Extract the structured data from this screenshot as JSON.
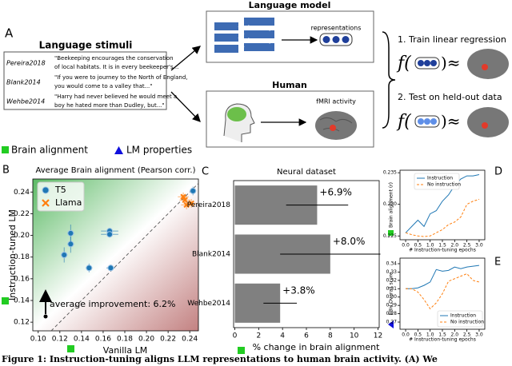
{
  "panel_labels": [
    "A",
    "B",
    "C",
    "D",
    "E"
  ],
  "stimuli": {
    "title": "Language stimuli",
    "rows": [
      {
        "dataset": "Pereira2018",
        "text": [
          "\"Beekeeping encourages the conservation",
          "of local habitats. It is in every beekeeper's..."
        ]
      },
      {
        "dataset": "Blank2014",
        "text": [
          "\"If you were to journey to the North of England,",
          "you would come to a valley that...\""
        ]
      },
      {
        "dataset": "Wehbe2014",
        "text": [
          "\"Harry had never believed he would meet a",
          "boy he hated more than Dudley, but...\""
        ]
      }
    ]
  },
  "language_model": {
    "title": "Language model",
    "output": "representations"
  },
  "human": {
    "title": "Human",
    "output": "fMRI activity"
  },
  "steps": [
    "1. Train linear regression",
    "2. Test on held-out data"
  ],
  "formula": {
    "prefix": "f(",
    "suffix": ")≈"
  },
  "legend_row": [
    "Brain alignment",
    "LM properties"
  ],
  "chart_data": [
    {
      "type": "scatter",
      "title": "Average Brain alignment (Pearson corr.)",
      "xlabel": "Vanilla LM",
      "ylabel": "Instruction-tuned LM",
      "xlim": [
        0.095,
        0.248
      ],
      "ylim": [
        0.112,
        0.252
      ],
      "xticks": [
        {
          "value": 0.1,
          "label": "0.10"
        },
        0.12,
        0.14,
        0.16,
        0.18,
        {
          "value": 0.2,
          "label": "0.20"
        },
        0.22,
        0.24
      ],
      "yticks": [
        0.12,
        0.14,
        0.16,
        0.18,
        {
          "value": 0.2,
          "label": "0.20"
        },
        0.22,
        0.24
      ],
      "legend": "upper left",
      "series": [
        {
          "name": "T5",
          "color": "#1f77b4",
          "marker": "circle",
          "x": [
            0.124,
            0.13,
            0.13,
            0.147,
            0.167,
            0.166,
            0.166,
            0.243
          ],
          "values": [
            0.182,
            0.192,
            0.202,
            0.17,
            0.17,
            0.204,
            0.201,
            0.241
          ],
          "xerr": [
            0.003,
            0.003,
            0.003,
            0.003,
            0.004,
            0.008,
            0.008,
            0.003
          ],
          "yerr": [
            0.007,
            0.008,
            0.008,
            0.004,
            0.003,
            0.003,
            0.003,
            0.004
          ]
        },
        {
          "name": "Llama",
          "color": "#ff7f0e",
          "marker": "x",
          "x": [
            0.234,
            0.2356,
            0.237,
            0.2415
          ],
          "values": [
            0.2356,
            0.2326,
            0.2281,
            0.2296
          ],
          "xerr": [
            0.005,
            0.005,
            0.005,
            0.004
          ],
          "yerr": [
            0.004,
            0.004,
            0.004,
            0.004
          ]
        }
      ],
      "annotation": "average improvement: 6.2%"
    },
    {
      "type": "barh",
      "title": "Neural dataset",
      "xlabel": "% change in brain alignment",
      "categories": [
        "Pereira2018",
        "Blank2014",
        "Wehbe2014"
      ],
      "values": [
        6.9,
        8.0,
        3.8
      ],
      "value_labels": [
        "+6.9%",
        "+8.0%",
        "+3.8%"
      ],
      "errors": [
        2.6,
        4.2,
        1.4
      ],
      "color": "#808080",
      "xlim": [
        -0.1,
        12.1
      ],
      "xticks": [
        0,
        2,
        4,
        6,
        8,
        10,
        12
      ]
    },
    {
      "type": "line",
      "ylabel": "Brain alignment (r)",
      "xlabel": "# Instruction-tuning epochs",
      "x": [
        0,
        0.25,
        0.5,
        0.75,
        1,
        1.25,
        1.5,
        1.75,
        2,
        2.25,
        2.5,
        2.75,
        3
      ],
      "xlim": [
        -0.23,
        3.23
      ],
      "ylim": [
        0.2244,
        0.2354
      ],
      "xticks": [
        {
          "value": 0,
          "label": "0.0"
        },
        0.5,
        {
          "value": 1,
          "label": "1.0"
        },
        1.5,
        {
          "value": 2,
          "label": "2.0"
        },
        2.5,
        {
          "value": 3,
          "label": "3.0"
        }
      ],
      "yticks": [
        0.225,
        {
          "value": 0.23,
          "label": "0.230"
        },
        0.235
      ],
      "legend": "upper left",
      "series": [
        {
          "name": "Instruction",
          "color": "#1f77b4",
          "linestyle": "solid",
          "values": [
            0.2255,
            0.2265,
            0.2275,
            0.2265,
            0.2285,
            0.229,
            0.2305,
            0.2315,
            0.233,
            0.234,
            0.2345,
            0.2345,
            0.2347
          ]
        },
        {
          "name": "No instruction",
          "color": "#ff7f0e",
          "linestyle": "dashed",
          "values": [
            0.2255,
            0.2252,
            0.225,
            0.2249,
            0.225,
            0.2255,
            0.226,
            0.2268,
            0.2272,
            0.228,
            0.23,
            0.2305,
            0.2308
          ]
        }
      ]
    },
    {
      "type": "line",
      "ylabel": "BBH Overall score",
      "xlabel": "# Instruction-tuning epochs",
      "x": [
        0,
        0.25,
        0.5,
        0.75,
        1,
        1.25,
        1.5,
        1.75,
        2,
        2.25,
        2.5,
        2.75,
        3
      ],
      "xlim": [
        -0.23,
        3.23
      ],
      "ylim": [
        0.2614,
        0.3467
      ],
      "xticks": [
        {
          "value": 0,
          "label": "0.0"
        },
        0.5,
        {
          "value": 1,
          "label": "1.0"
        },
        1.5,
        {
          "value": 2,
          "label": "2.0"
        },
        2.5,
        {
          "value": 3,
          "label": "3.0"
        }
      ],
      "yticks": [
        0.27,
        0.28,
        0.29,
        {
          "value": 0.3,
          "label": "0.30"
        },
        0.31,
        0.32,
        0.33,
        0.34
      ],
      "legend": "lower right",
      "series": [
        {
          "name": "Instruction",
          "color": "#1f77b4",
          "linestyle": "solid",
          "values": [
            0.31,
            0.31,
            0.311,
            0.314,
            0.318,
            0.333,
            0.331,
            0.332,
            0.336,
            0.334,
            0.336,
            0.337,
            0.338
          ]
        },
        {
          "name": "No instruction",
          "color": "#ff7f0e",
          "linestyle": "dashed",
          "values": [
            0.31,
            0.31,
            0.306,
            0.297,
            0.286,
            0.293,
            0.304,
            0.319,
            0.322,
            0.325,
            0.328,
            0.32,
            0.318
          ]
        }
      ]
    }
  ],
  "caption": "Figure 1: Instruction-tuning aligns LLM representations to human brain activity. (A) We"
}
